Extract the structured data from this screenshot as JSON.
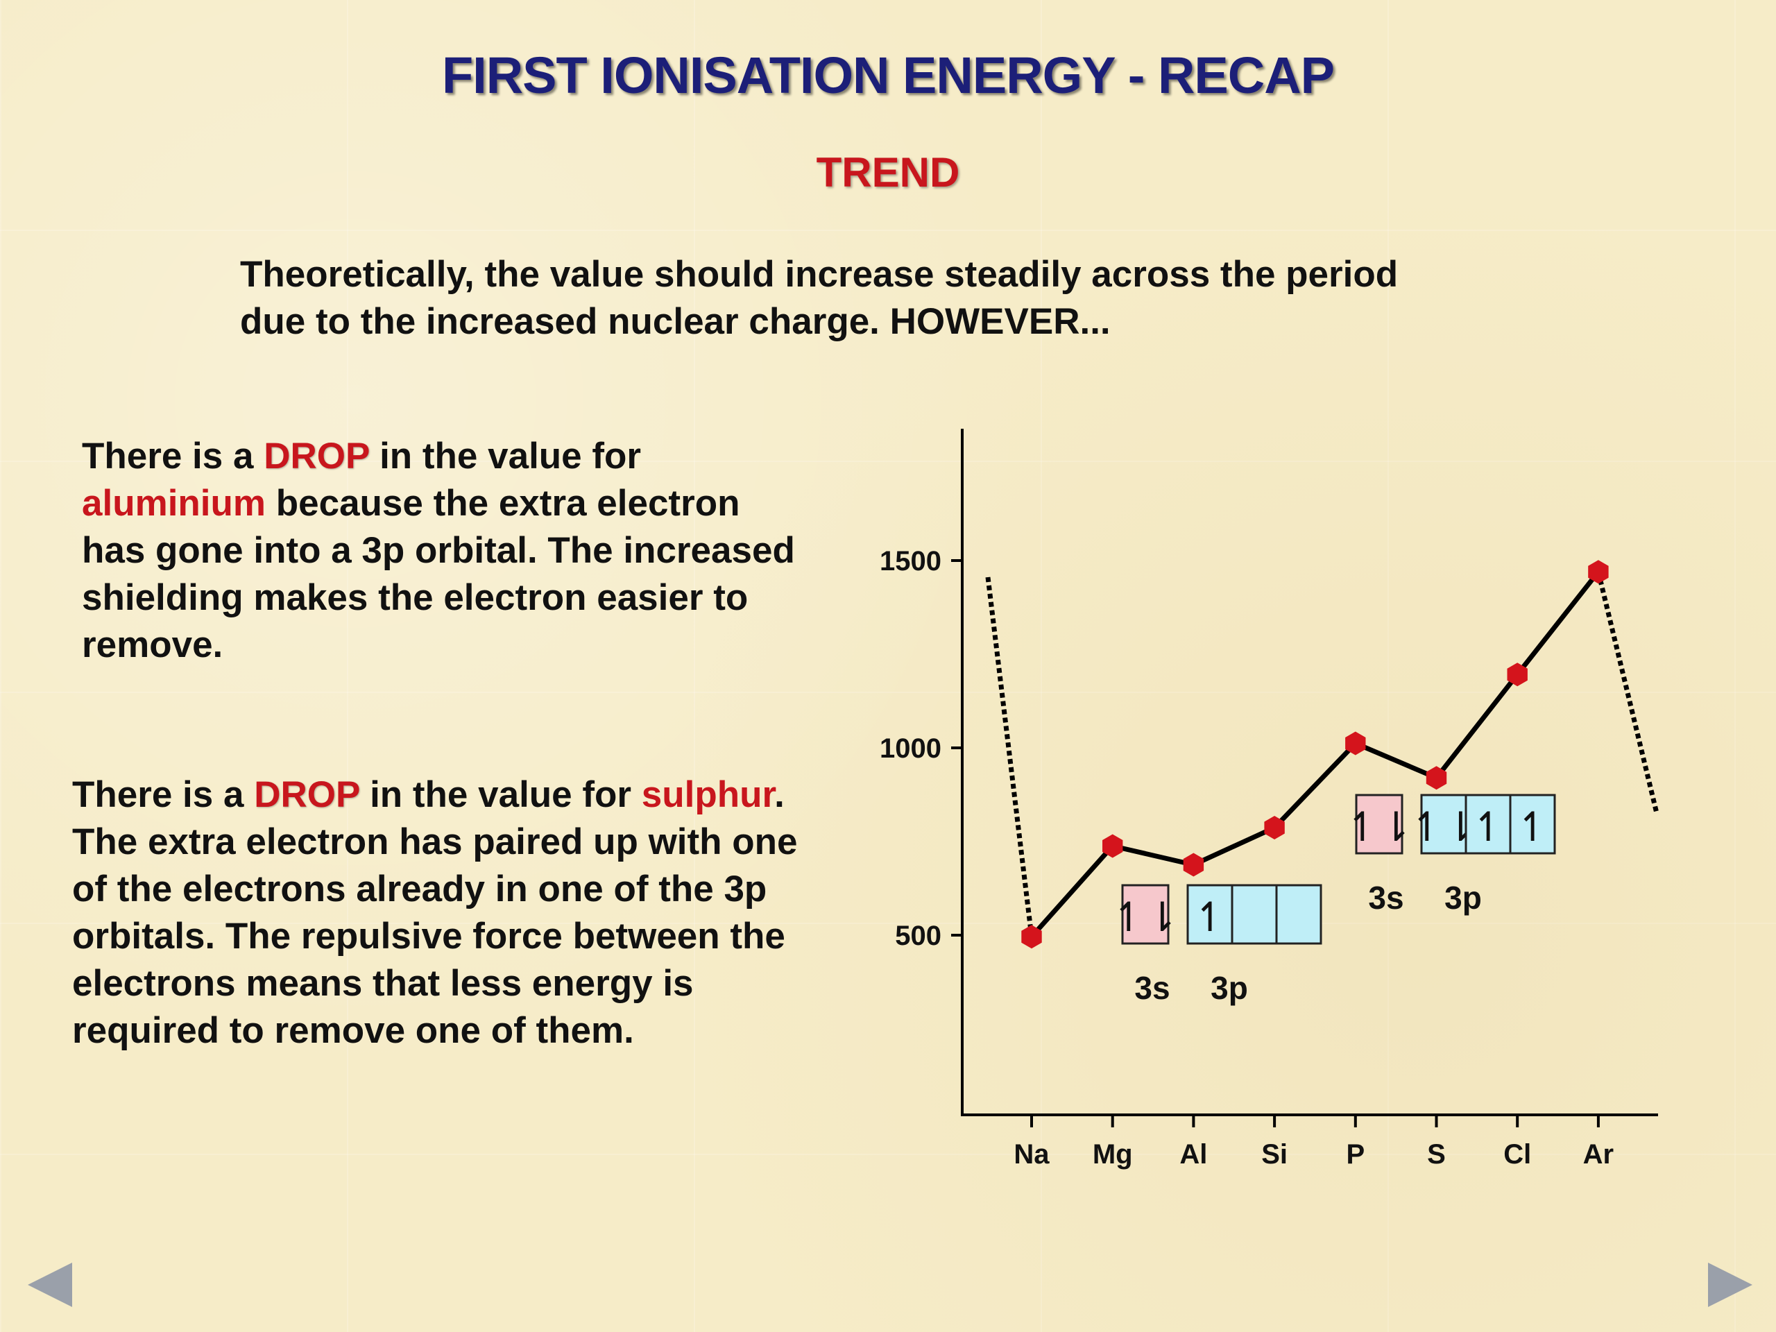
{
  "slide": {
    "title": "FIRST IONISATION ENERGY - RECAP",
    "subtitle": "TREND",
    "intro_line1": "Theoretically, the value should increase steadily across the period",
    "intro_line2": "due to the increased nuclear charge.  HOWEVER...",
    "para1": {
      "a": "There is a ",
      "drop": "DROP",
      "b": " in the value for ",
      "element": "aluminium",
      "c": " because the extra electron has gone into a 3p orbital. The increased shielding makes the electron easier to remove."
    },
    "para2": {
      "a": "There is a ",
      "drop": "DROP",
      "b": " in the value for ",
      "element": "sulphur",
      "c": ". The extra electron has paired up with one of the electrons already in one of the 3p orbitals. The repulsive force between the electrons means that less energy is required to remove one of them."
    }
  },
  "nav": {
    "prev_icon": "triangle-left-icon",
    "next_icon": "triangle-right-icon"
  },
  "chart_data": {
    "type": "line",
    "title": "",
    "xlabel": "",
    "ylabel": "",
    "categories": [
      "Na",
      "Mg",
      "Al",
      "Si",
      "P",
      "S",
      "Cl",
      "Ar"
    ],
    "series": [
      {
        "values": [
          496,
          738,
          688,
          787,
          1012,
          920,
          1196,
          1470
        ],
        "color": "#000000",
        "marker_color": "#d4141c"
      }
    ],
    "ylim": [
      0,
      1900
    ],
    "yticks": [
      500,
      1000,
      1500
    ],
    "annotations": {
      "al_config": {
        "s_label": "3s",
        "p_label": "3p",
        "s_box": [
          "↿⇂"
        ],
        "p_boxes": [
          "↿",
          "",
          ""
        ]
      },
      "s_config": {
        "s_label": "3s",
        "p_label": "3p",
        "s_box": [
          "↿⇂"
        ],
        "p_boxes": [
          "↿⇂",
          "↿",
          "↿"
        ]
      }
    },
    "colors": {
      "s_orbital": "#f6c8cc",
      "p_orbital": "#bfeef7",
      "marker": "#d4141c"
    }
  }
}
